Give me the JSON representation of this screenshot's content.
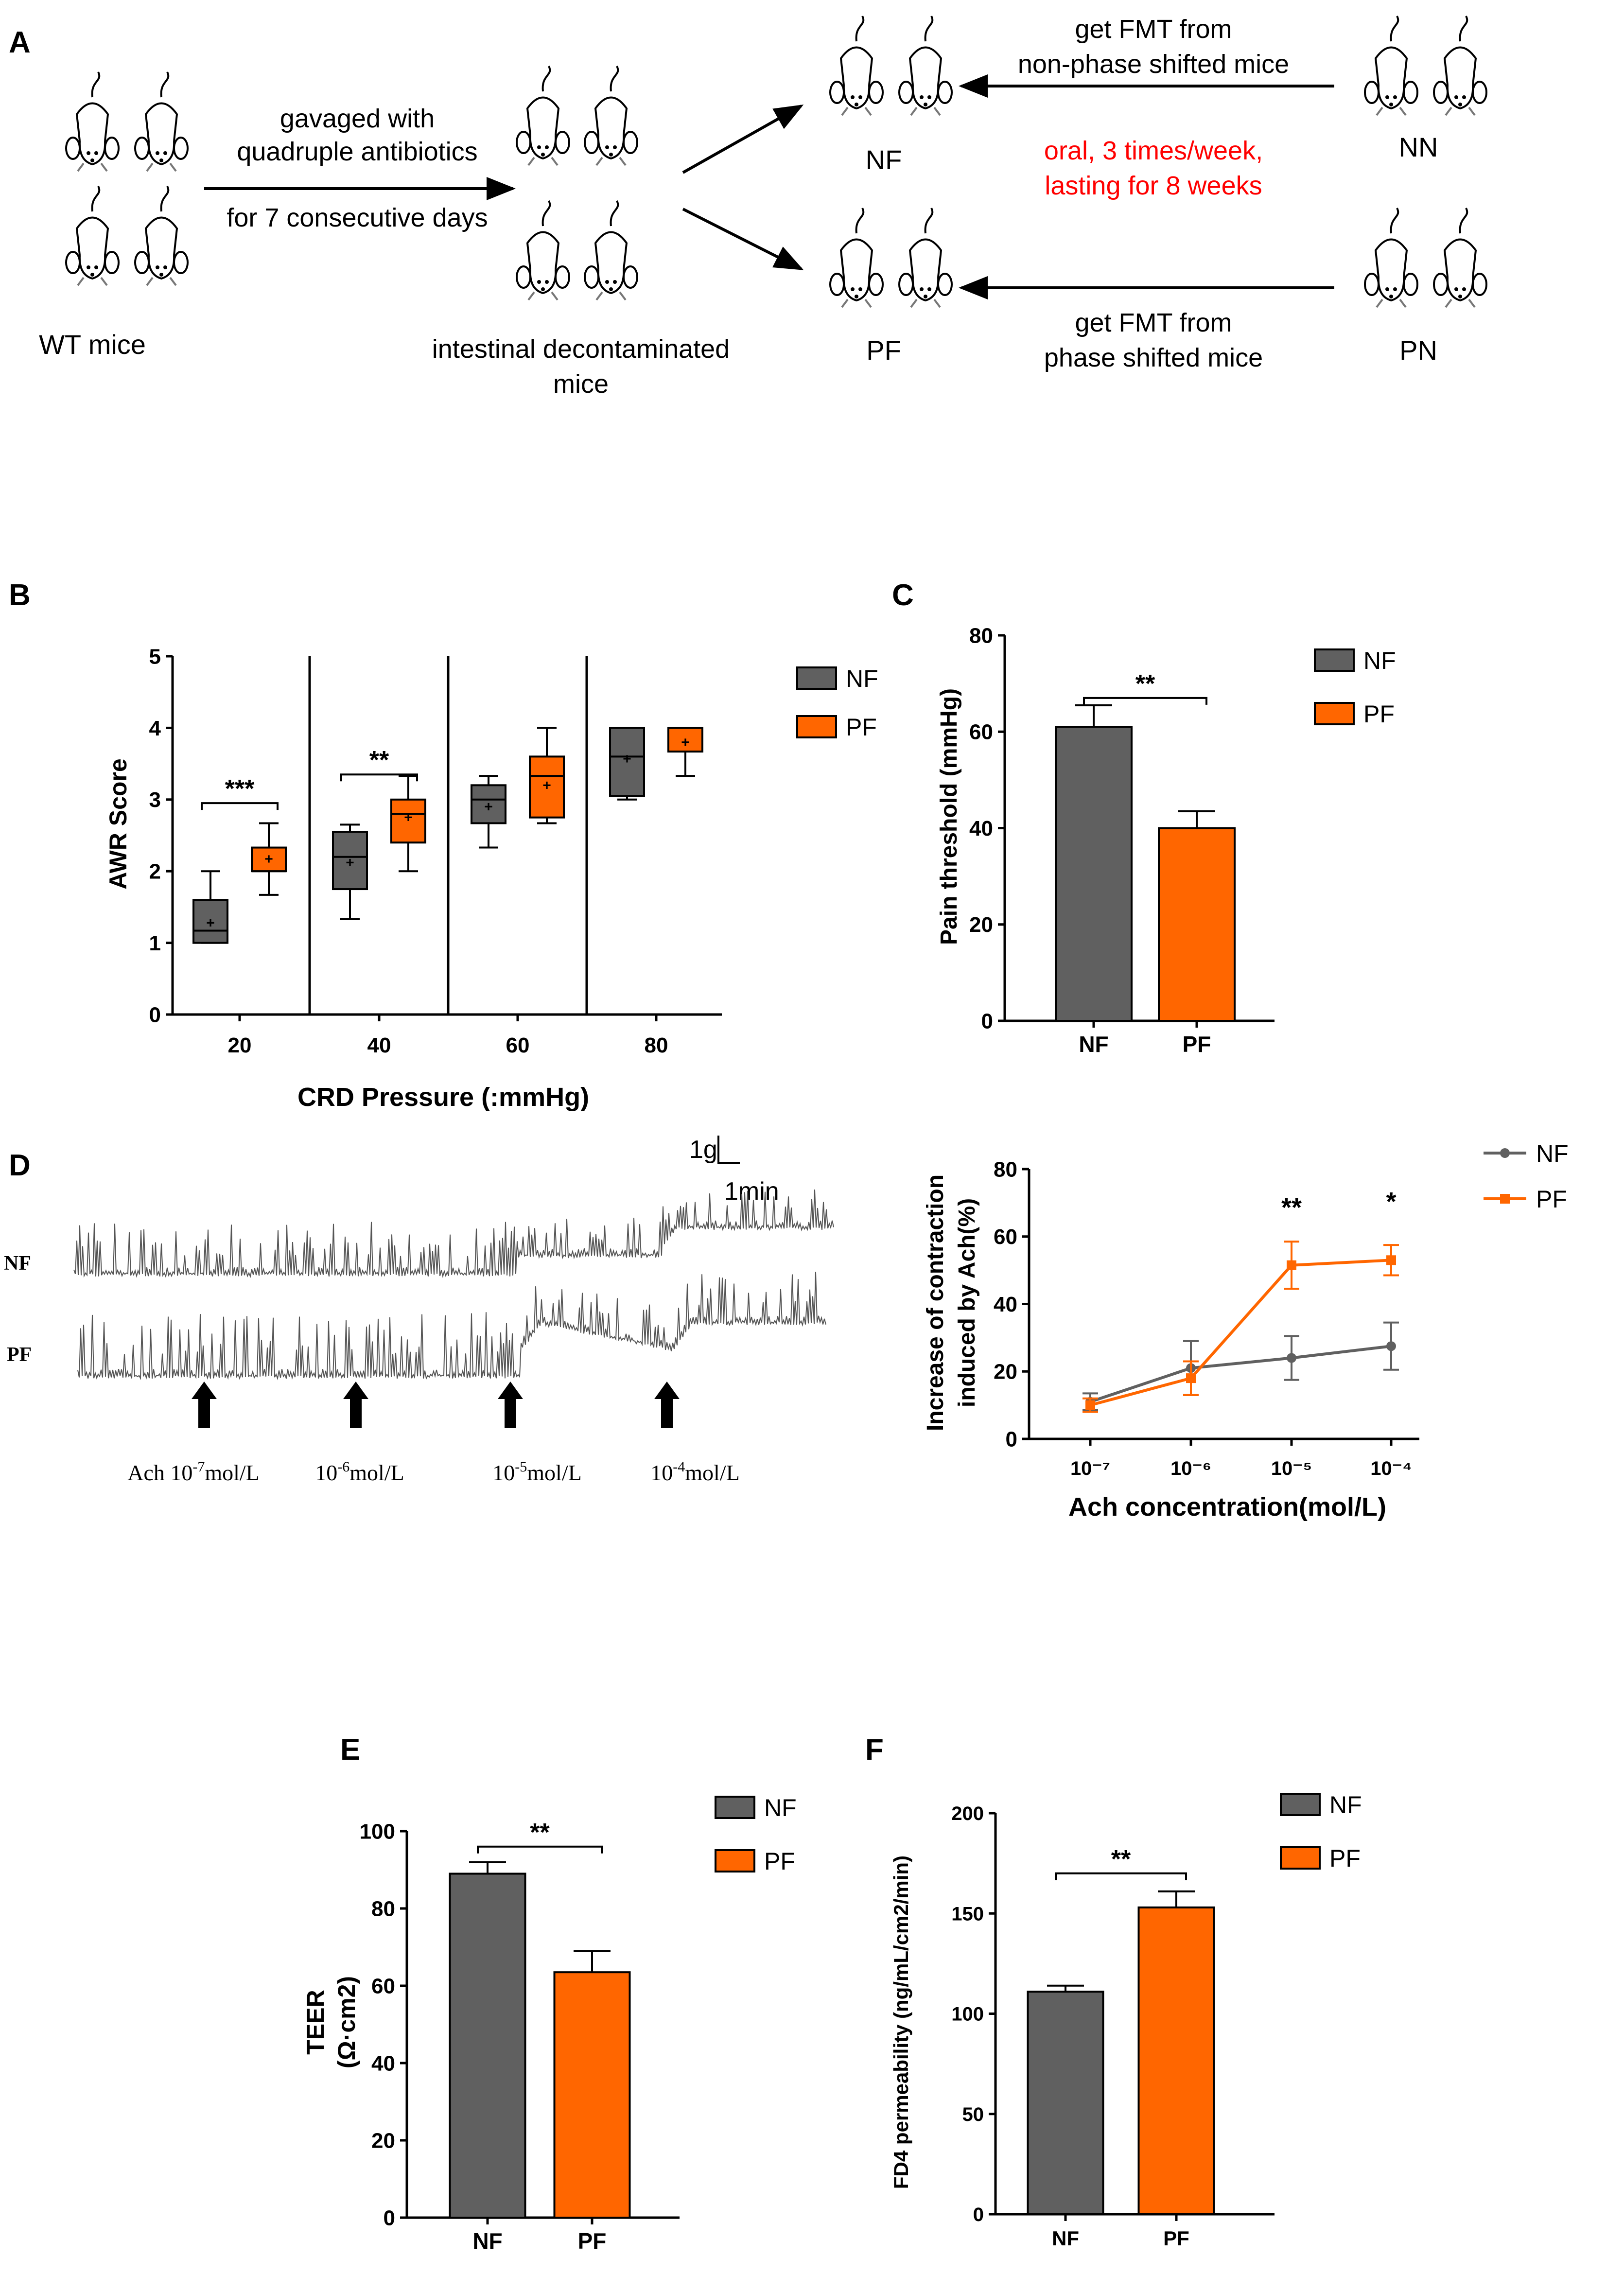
{
  "colors": {
    "nf": "#606060",
    "pf": "#ff6600",
    "red": "#ff0000",
    "black": "#000000"
  },
  "panel_a": {
    "letter": "A",
    "wt_label": "WT mice",
    "step1_line1": "gavaged with",
    "step1_line2": "quadruple antibiotics",
    "step1_line3": "for 7 consecutive days",
    "decon_line1": "intestinal decontaminated",
    "decon_line2": "mice",
    "nf_label": "NF",
    "pf_label": "PF",
    "nn_label": "NN",
    "pn_label": "PN",
    "fmt_top_line1": "get FMT from",
    "fmt_top_line2": "non-phase shifted mice",
    "fmt_bottom_line1": "get FMT from",
    "fmt_bottom_line2": "phase shifted mice",
    "oral_line1": "oral, 3 times/week,",
    "oral_line2": "lasting for 8 weeks"
  },
  "panel_d_trace": {
    "letter": "D",
    "nf_label": "NF",
    "pf_label": "PF",
    "scale_y": "1g",
    "scale_x": "1min",
    "arrows": [
      {
        "prefix": "Ach 10",
        "exp": "-7",
        "suffix": "mol/L"
      },
      {
        "prefix": "10",
        "exp": "-6",
        "suffix": "mol/L"
      },
      {
        "prefix": "10",
        "exp": "-5",
        "suffix": "mol/L"
      },
      {
        "prefix": "10",
        "exp": "-4",
        "suffix": "mol/L"
      }
    ]
  },
  "chart_data": [
    {
      "id": "B",
      "letter": "B",
      "type": "box",
      "xlabel": "CRD Pressure  (:mmHg)",
      "ylabel": "AWR Score",
      "ylim": [
        0,
        5
      ],
      "yticks": [
        0,
        1,
        2,
        3,
        4,
        5
      ],
      "categories": [
        "20",
        "40",
        "60",
        "80"
      ],
      "legend": [
        "NF",
        "PF"
      ],
      "series": [
        {
          "name": "NF",
          "boxes": [
            {
              "min": 1.0,
              "q1": 1.0,
              "median": 1.17,
              "q3": 1.6,
              "max": 2.0,
              "mean": 1.28
            },
            {
              "min": 1.33,
              "q1": 1.75,
              "median": 2.2,
              "q3": 2.55,
              "max": 2.65,
              "mean": 2.12
            },
            {
              "min": 2.33,
              "q1": 2.67,
              "median": 3.0,
              "q3": 3.2,
              "max": 3.33,
              "mean": 2.9
            },
            {
              "min": 3.0,
              "q1": 3.05,
              "median": 3.6,
              "q3": 4.0,
              "max": 4.0,
              "mean": 3.57
            }
          ]
        },
        {
          "name": "PF",
          "boxes": [
            {
              "min": 1.67,
              "q1": 2.0,
              "median": 2.0,
              "q3": 2.33,
              "max": 2.67,
              "mean": 2.17
            },
            {
              "min": 2.0,
              "q1": 2.4,
              "median": 2.8,
              "q3": 3.0,
              "max": 3.33,
              "mean": 2.75
            },
            {
              "min": 2.67,
              "q1": 2.75,
              "median": 3.33,
              "q3": 3.6,
              "max": 4.0,
              "mean": 3.2
            },
            {
              "min": 3.33,
              "q1": 3.67,
              "median": 4.0,
              "q3": 4.0,
              "max": 4.0,
              "mean": 3.8
            }
          ]
        }
      ],
      "significance": [
        {
          "category": "20",
          "label": "***"
        },
        {
          "category": "40",
          "label": "**"
        }
      ]
    },
    {
      "id": "C",
      "letter": "C",
      "type": "bar",
      "ylabel": "Pain threshold (mmHg)",
      "ylim": [
        0,
        80
      ],
      "yticks": [
        0,
        20,
        40,
        60,
        80
      ],
      "categories": [
        "NF",
        "PF"
      ],
      "values": [
        61,
        40
      ],
      "errors": [
        4.5,
        3.5
      ],
      "legend": [
        "NF",
        "PF"
      ],
      "significance": "**"
    },
    {
      "id": "D",
      "type": "line",
      "xlabel": "Ach concentration(mol/L)",
      "ylabel_line1": "Increase of contraction",
      "ylabel_line2": "induced by Ach(%)",
      "ylim": [
        0,
        80
      ],
      "yticks": [
        0,
        20,
        40,
        60,
        80
      ],
      "x": [
        "10⁻⁷",
        "10⁻⁶",
        "10⁻⁵",
        "10⁻⁴"
      ],
      "legend": [
        "NF",
        "PF"
      ],
      "series": [
        {
          "name": "NF",
          "values": [
            11,
            21,
            24,
            27.5
          ],
          "errors": [
            2.5,
            8,
            6.5,
            7
          ]
        },
        {
          "name": "PF",
          "values": [
            10,
            18,
            51.5,
            53
          ],
          "errors": [
            2,
            5,
            7,
            4.5
          ]
        }
      ],
      "significance": [
        {
          "index": 2,
          "label": "**"
        },
        {
          "index": 3,
          "label": "*"
        }
      ]
    },
    {
      "id": "E",
      "letter": "E",
      "type": "bar",
      "ylabel_line1": "TEER",
      "ylabel_line2": "(Ω·cm2)",
      "ylim": [
        0,
        100
      ],
      "yticks": [
        0,
        20,
        40,
        60,
        80,
        100
      ],
      "categories": [
        "NF",
        "PF"
      ],
      "values": [
        89,
        63.5
      ],
      "errors": [
        3,
        5.5
      ],
      "legend": [
        "NF",
        "PF"
      ],
      "significance": "**"
    },
    {
      "id": "F",
      "letter": "F",
      "type": "bar",
      "ylabel": "FD4 permeability (ng/mL/cm2/min)",
      "ylim": [
        0,
        200
      ],
      "yticks": [
        0,
        50,
        100,
        150,
        200
      ],
      "categories": [
        "NF",
        "PF"
      ],
      "values": [
        111,
        153
      ],
      "errors": [
        3,
        8
      ],
      "legend": [
        "NF",
        "PF"
      ],
      "significance": "**"
    }
  ]
}
